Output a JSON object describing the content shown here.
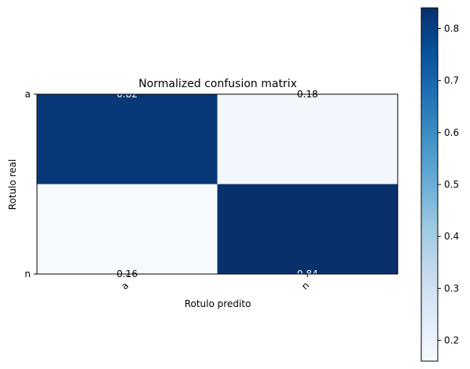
{
  "chart_data": {
    "type": "heatmap",
    "title": "Normalized confusion matrix",
    "xlabel": "Rotulo predito",
    "ylabel": "Rotulo real",
    "x_categories": [
      "a",
      "n"
    ],
    "y_categories": [
      "a",
      "n"
    ],
    "values": [
      [
        0.82,
        0.18
      ],
      [
        0.16,
        0.84
      ]
    ],
    "value_labels": [
      [
        "0.82",
        "0.18"
      ],
      [
        "0.16",
        "0.84"
      ]
    ],
    "colormap": "Blues",
    "colorbar": {
      "range": [
        0.16,
        0.84
      ],
      "ticks": [
        0.2,
        0.3,
        0.4,
        0.5,
        0.6,
        0.7,
        0.8
      ],
      "tick_labels": [
        "0.2",
        "0.3",
        "0.4",
        "0.5",
        "0.6",
        "0.7",
        "0.8"
      ]
    },
    "x_tick_rotation": 45,
    "grid": false
  }
}
